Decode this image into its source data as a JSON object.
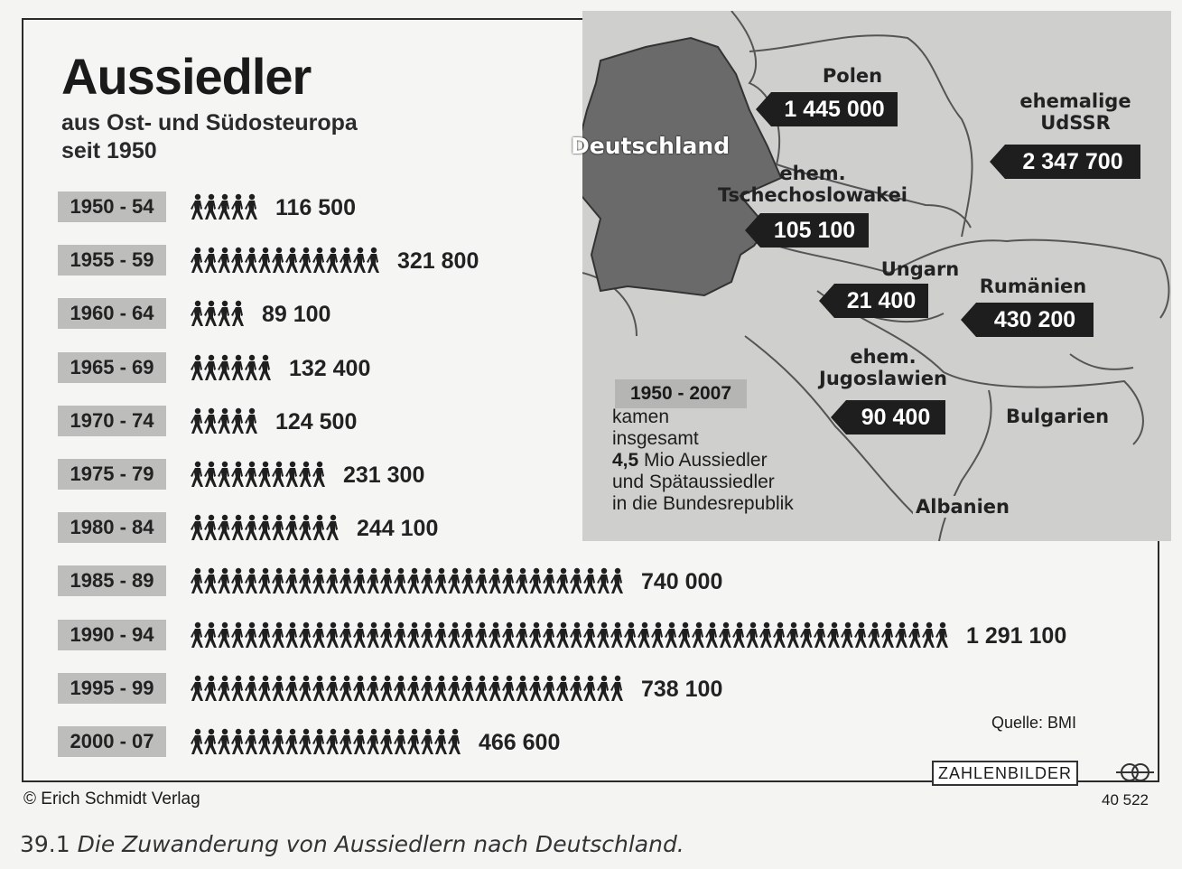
{
  "header": {
    "title": "Aussiedler",
    "subtitle_line1": "aus Ost- und Südosteuropa",
    "subtitle_line2": "seit 1950"
  },
  "chart_data": {
    "type": "bar",
    "title": "Aussiedler",
    "subtitle": "aus Ost- und Südosteuropa seit 1950",
    "categories": [
      "1950 - 54",
      "1955 - 59",
      "1960 - 64",
      "1965 - 69",
      "1970 - 74",
      "1975 - 79",
      "1980 - 84",
      "1985 - 89",
      "1990 - 94",
      "1995 - 99",
      "2000 - 07"
    ],
    "values": [
      116500,
      321800,
      89100,
      132400,
      124500,
      231300,
      244100,
      740000,
      1291100,
      738100,
      466600
    ],
    "value_labels": [
      "116 500",
      "321 800",
      "89 100",
      "132 400",
      "124 500",
      "231 300",
      "244 100",
      "740 000",
      "1 291 100",
      "738 100",
      "466 600"
    ],
    "pictogram": "walking-person-icon",
    "orientation": "horizontal",
    "grid": false
  },
  "map": {
    "highlight_label": "Deutschland",
    "countries": [
      {
        "name": "Polen",
        "value": "1 445 000"
      },
      {
        "name": "ehemalige\nUdSSR",
        "value": "2 347 700"
      },
      {
        "name": "ehem.\nTschechoslowakei",
        "value": "105 100"
      },
      {
        "name": "Ungarn",
        "value": "21 400"
      },
      {
        "name": "Rumänien",
        "value": "430 200"
      },
      {
        "name": "ehem.\nJugoslawien",
        "value": "90 400"
      },
      {
        "name": "Bulgarien",
        "value": ""
      },
      {
        "name": "Albanien",
        "value": ""
      }
    ]
  },
  "summary": {
    "period": "1950 - 2007",
    "line1": "kamen",
    "line2": "insgesamt",
    "line3_bold": "4,5",
    "line3_rest": " Mio Aussiedler",
    "line4": "und Spätaussiedler",
    "line5": "in die Bundesrepublik"
  },
  "footer": {
    "source": "Quelle: BMI",
    "brand": "ZAHLENBILDER",
    "copyright": "© Erich Schmidt Verlag",
    "ref_number": "40 522"
  },
  "caption": {
    "number": "39.1",
    "text": "Die Zuwanderung von Aussiedlern nach Deutschland."
  },
  "colors": {
    "bar_figure": "#1f1f1f",
    "label_bg": "#bdbdbb",
    "map_bg": "#cfcfcd",
    "germany": "#6a6a6a",
    "tag_bg": "#1e1e1e"
  }
}
